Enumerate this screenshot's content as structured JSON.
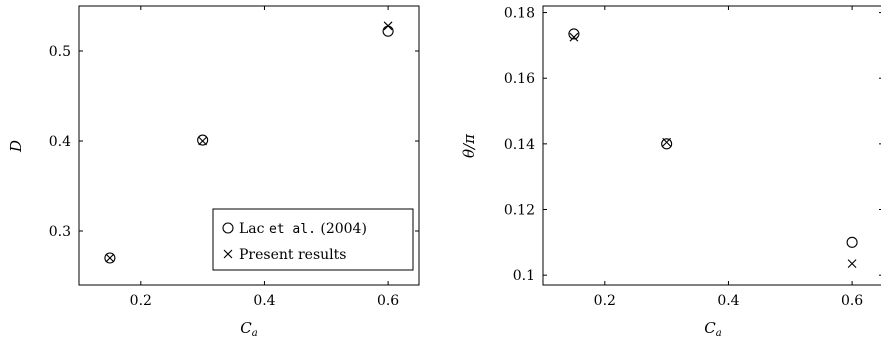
{
  "chart_data": [
    {
      "type": "scatter",
      "xlabel": "C",
      "xlabel_sub": "a",
      "ylabel": "D",
      "xlim": [
        0.1,
        0.65
      ],
      "ylim": [
        0.24,
        0.55
      ],
      "xticks": [
        0.2,
        0.4,
        0.6
      ],
      "xtick_labels": [
        "0.2",
        "0.4",
        "0.6"
      ],
      "yticks": [
        0.3,
        0.4,
        0.5
      ],
      "ytick_labels": [
        "0.3",
        "0.4",
        "0.5"
      ],
      "legend": {
        "placement": "bottom-right",
        "entries": [
          {
            "marker": "circle",
            "text_pre": "Lac ",
            "text_em": "et al.",
            "text_post": " (2004)"
          },
          {
            "marker": "cross",
            "text_pre": "Present results",
            "text_em": "",
            "text_post": ""
          }
        ]
      },
      "series": [
        {
          "marker": "circle",
          "x": [
            0.15,
            0.3,
            0.6
          ],
          "y": [
            0.27,
            0.401,
            0.522
          ]
        },
        {
          "marker": "cross",
          "x": [
            0.15,
            0.3,
            0.6
          ],
          "y": [
            0.27,
            0.4,
            0.528
          ]
        }
      ]
    },
    {
      "type": "scatter",
      "xlabel": "C",
      "xlabel_sub": "a",
      "ylabel": "θ/π",
      "xlim": [
        0.1,
        0.65
      ],
      "ylim": [
        0.097,
        0.182
      ],
      "xticks": [
        0.2,
        0.4,
        0.6
      ],
      "xtick_labels": [
        "0.2",
        "0.4",
        "0.6"
      ],
      "yticks": [
        0.1,
        0.12,
        0.14,
        0.16,
        0.18
      ],
      "ytick_labels": [
        "0.1",
        "0.12",
        "0.14",
        "0.16",
        "0.18"
      ],
      "series": [
        {
          "marker": "circle",
          "x": [
            0.15,
            0.3,
            0.6
          ],
          "y": [
            0.1735,
            0.14,
            0.11
          ]
        },
        {
          "marker": "cross",
          "x": [
            0.15,
            0.3,
            0.6
          ],
          "y": [
            0.1725,
            0.1405,
            0.1035
          ]
        }
      ]
    }
  ]
}
